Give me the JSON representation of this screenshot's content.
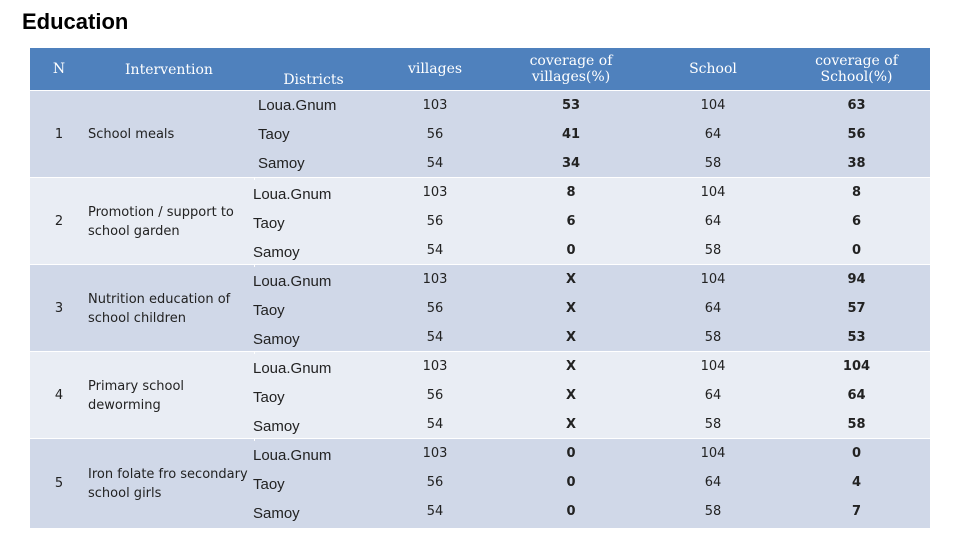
{
  "title": "Education",
  "headers": {
    "n": "N",
    "intervention": "Intervention",
    "districts": "Districts",
    "villages": "villages",
    "coverage_villages_1": "coverage of",
    "coverage_villages_2": "villages(%)",
    "school": "School",
    "coverage_school_1": "coverage of",
    "coverage_school_2": "School(%)"
  },
  "groups": [
    {
      "n": "1",
      "intervention_lines": [
        "School meals"
      ],
      "rows": [
        {
          "district": "Loua.Gnum",
          "villages": "103",
          "cov_villages": "53",
          "school": "104",
          "cov_school": "63"
        },
        {
          "district": "Taoy",
          "villages": "56",
          "cov_villages": "41",
          "school": "64",
          "cov_school": "56"
        },
        {
          "district": "Samoy",
          "villages": "54",
          "cov_villages": "34",
          "school": "58",
          "cov_school": "38"
        }
      ]
    },
    {
      "n": "2",
      "intervention_lines": [
        "Promotion / support to",
        "school garden"
      ],
      "rows": [
        {
          "district": "Loua.Gnum",
          "villages": "103",
          "cov_villages": "8",
          "school": "104",
          "cov_school": "8"
        },
        {
          "district": "Taoy",
          "villages": "56",
          "cov_villages": "6",
          "school": "64",
          "cov_school": "6"
        },
        {
          "district": "Samoy",
          "villages": "54",
          "cov_villages": "0",
          "school": "58",
          "cov_school": "0"
        }
      ]
    },
    {
      "n": "3",
      "intervention_lines": [
        "Nutrition education of",
        "school children"
      ],
      "rows": [
        {
          "district": "Loua.Gnum",
          "villages": "103",
          "cov_villages": "X",
          "school": "104",
          "cov_school": "94"
        },
        {
          "district": "Taoy",
          "villages": "56",
          "cov_villages": "X",
          "school": "64",
          "cov_school": "57"
        },
        {
          "district": "Samoy",
          "villages": "54",
          "cov_villages": "X",
          "school": "58",
          "cov_school": "53"
        }
      ]
    },
    {
      "n": "4",
      "intervention_lines": [
        "Primary school",
        "deworming"
      ],
      "rows": [
        {
          "district": "Loua.Gnum",
          "villages": "103",
          "cov_villages": "X",
          "school": "104",
          "cov_school": "104"
        },
        {
          "district": "Taoy",
          "villages": "56",
          "cov_villages": "X",
          "school": "64",
          "cov_school": "64"
        },
        {
          "district": "Samoy",
          "villages": "54",
          "cov_villages": "X",
          "school": "58",
          "cov_school": "58"
        }
      ]
    },
    {
      "n": "5",
      "intervention_lines": [
        "Iron folate fro secondary",
        "school girls"
      ],
      "rows": [
        {
          "district": "Loua.Gnum",
          "villages": "103",
          "cov_villages": "0",
          "school": "104",
          "cov_school": "0"
        },
        {
          "district": "Taoy",
          "villages": "56",
          "cov_villages": "0",
          "school": "64",
          "cov_school": "4"
        },
        {
          "district": "Samoy",
          "villages": "54",
          "cov_villages": "0",
          "school": "58",
          "cov_school": "7"
        }
      ]
    }
  ]
}
